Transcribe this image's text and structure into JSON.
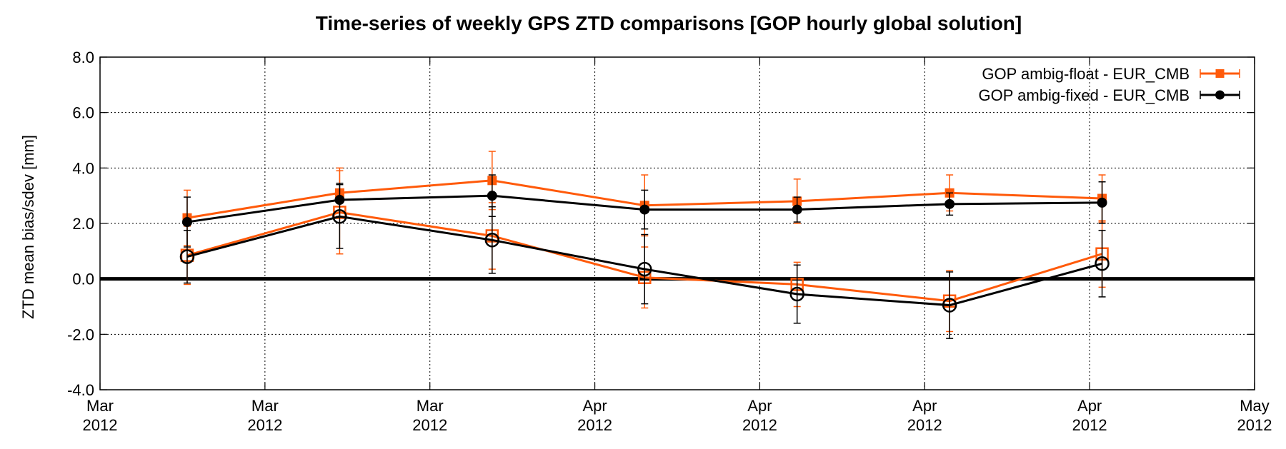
{
  "chart_data": {
    "type": "line",
    "title": "Time-series of weekly GPS ZTD comparisons [GOP hourly global solution]",
    "ylabel": "ZTD mean bias/sdev [mm]",
    "xlabel": "",
    "ylim": [
      -4.0,
      8.0
    ],
    "yticks": [
      "8.0",
      "6.0",
      "4.0",
      "2.0",
      "0.0",
      "-2.0",
      "-4.0"
    ],
    "xticks": [
      {
        "month": "Mar",
        "year": "2012"
      },
      {
        "month": "Mar",
        "year": "2012"
      },
      {
        "month": "Mar",
        "year": "2012"
      },
      {
        "month": "Apr",
        "year": "2012"
      },
      {
        "month": "Apr",
        "year": "2012"
      },
      {
        "month": "Apr",
        "year": "2012"
      },
      {
        "month": "Apr",
        "year": "2012"
      },
      {
        "month": "May",
        "year": "2012"
      }
    ],
    "x": [
      "2012-03-08",
      "2012-03-15",
      "2012-03-22",
      "2012-03-29",
      "2012-04-05",
      "2012-04-12",
      "2012-04-19"
    ],
    "x_range": [
      "2012-03-04",
      "2012-04-26"
    ],
    "grid": true,
    "zero_line": true,
    "legend_position": "top-right",
    "series": [
      {
        "name": "GOP ambig-float - EUR_CMB",
        "color": "#ff5a0a",
        "marker": "square",
        "sdev": [
          2.2,
          3.1,
          3.55,
          2.65,
          2.8,
          3.1,
          2.9
        ],
        "sdev_err": [
          1.0,
          0.9,
          1.05,
          1.1,
          0.8,
          0.65,
          0.85
        ],
        "bias": [
          0.85,
          2.4,
          1.55,
          0.05,
          -0.2,
          -0.8,
          0.9
        ],
        "bias_err": [
          1.05,
          1.5,
          1.2,
          1.1,
          0.8,
          1.1,
          1.2
        ]
      },
      {
        "name": "GOP ambig-fixed - EUR_CMB",
        "color": "#000000",
        "marker": "circle",
        "sdev": [
          2.05,
          2.85,
          3.0,
          2.5,
          2.5,
          2.7,
          2.75
        ],
        "sdev_err": [
          0.9,
          0.6,
          0.75,
          0.7,
          0.45,
          0.4,
          0.75
        ],
        "bias": [
          0.8,
          2.25,
          1.4,
          0.35,
          -0.55,
          -0.95,
          0.55
        ],
        "bias_err": [
          0.95,
          1.15,
          1.2,
          1.25,
          1.05,
          1.2,
          1.2
        ]
      }
    ]
  }
}
